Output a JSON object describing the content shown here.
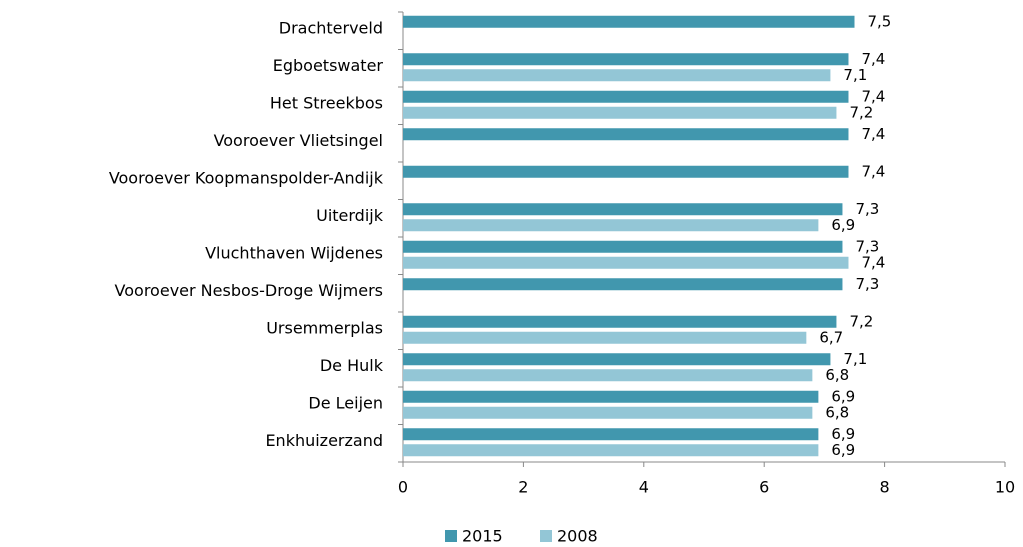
{
  "chart_data": {
    "type": "bar",
    "orientation": "horizontal",
    "categories": [
      "Drachterveld",
      "Egboetswater",
      "Het Streekbos",
      "Vooroever Vlietsingel",
      "Vooroever Koopmanspolder-Andijk",
      "Uiterdijk",
      "Vluchthaven Wijdenes",
      "Vooroever Nesbos-Droge Wijmers",
      "Ursemmerplas",
      "De Hulk",
      "De Leijen",
      "Enkhuizerzand"
    ],
    "series": [
      {
        "name": "2015",
        "color": "#4197ae",
        "values": [
          7.5,
          7.4,
          7.4,
          7.4,
          7.4,
          7.3,
          7.3,
          7.3,
          7.2,
          7.1,
          6.9,
          6.9
        ],
        "value_labels": [
          "7,5",
          "7,4",
          "7,4",
          "7,4",
          "7,4",
          "7,3",
          "7,3",
          "7,3",
          "7,2",
          "7,1",
          "6,9",
          "6,9"
        ]
      },
      {
        "name": "2008",
        "color": "#93c6d6",
        "values": [
          null,
          7.1,
          7.2,
          null,
          null,
          6.9,
          7.4,
          null,
          6.7,
          6.8,
          6.8,
          6.9
        ],
        "value_labels": [
          null,
          "7,1",
          "7,2",
          null,
          null,
          "6,9",
          "7,4",
          null,
          "6,7",
          "6,8",
          "6,8",
          "6,9"
        ]
      }
    ],
    "xlim": [
      0,
      10
    ],
    "xticks": [
      0,
      2,
      4,
      6,
      8,
      10
    ],
    "legend": "bottom"
  }
}
